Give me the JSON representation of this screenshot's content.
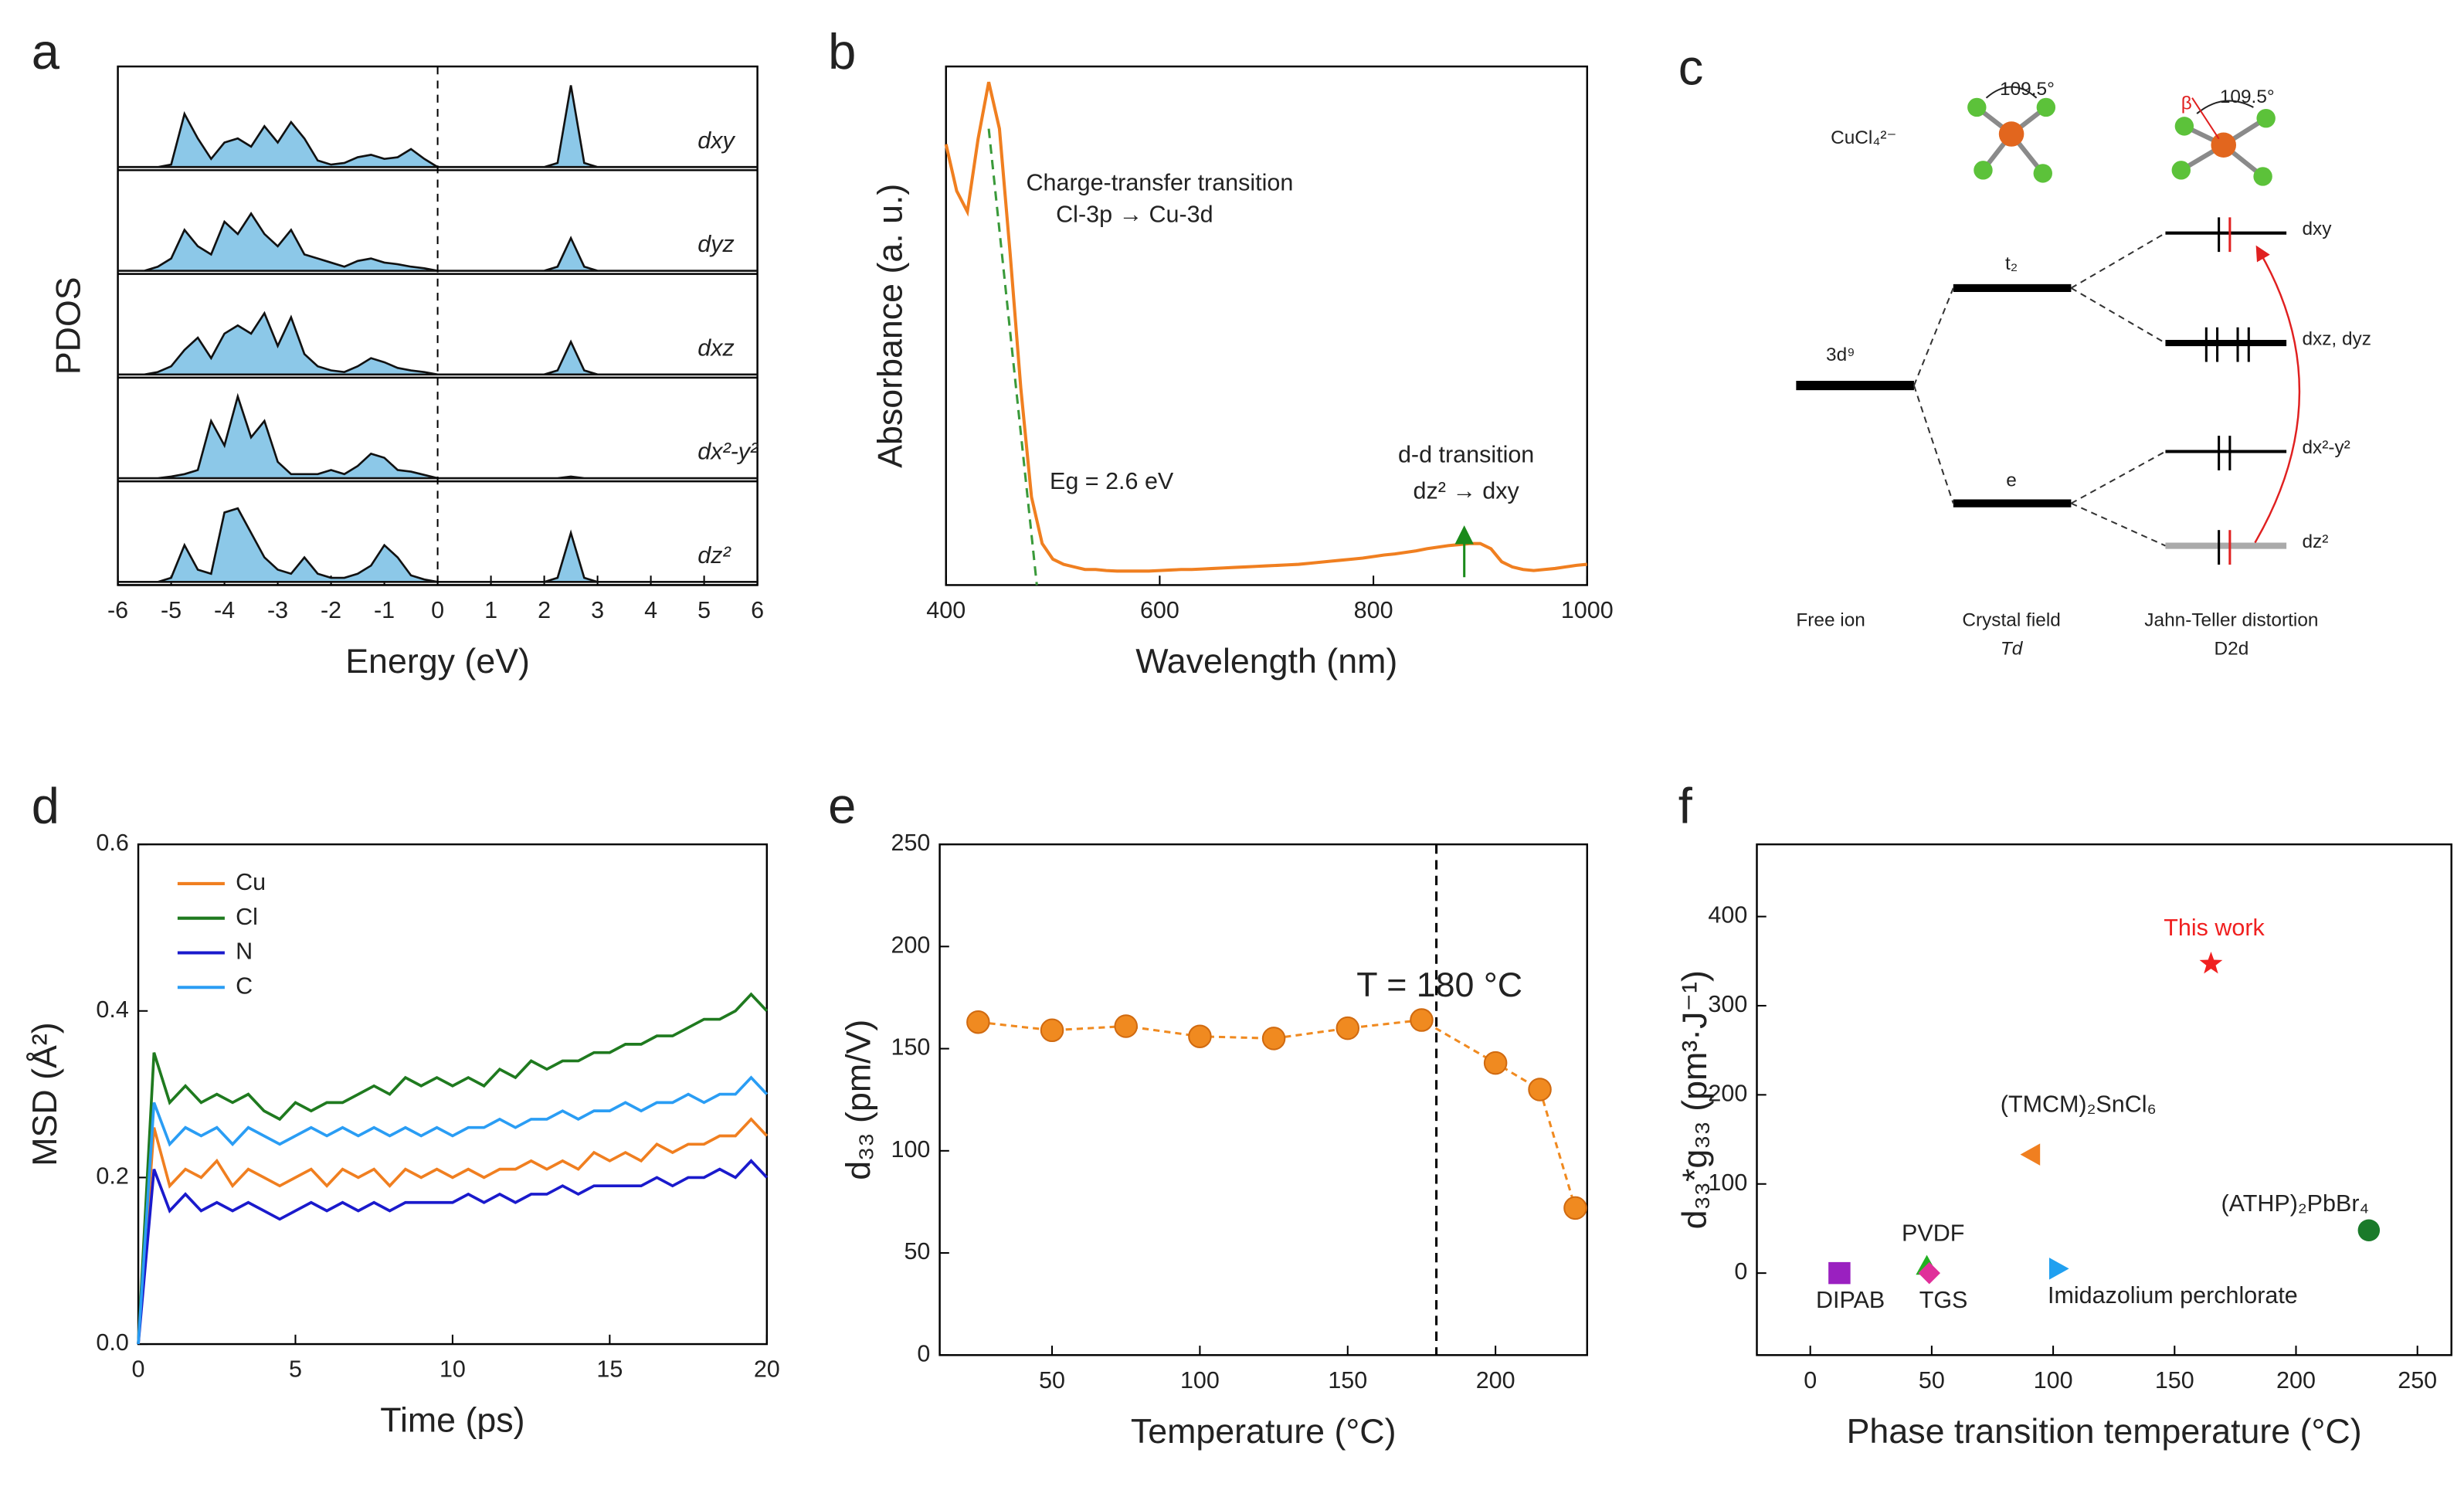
{
  "chart_data": [
    {
      "type": "area",
      "panel": "a",
      "xlabel": "Energy (eV)",
      "ylabel": "PDOS",
      "xlim": [
        -6,
        6
      ],
      "xticks": [
        -6,
        -5,
        -4,
        -3,
        -2,
        -1,
        0,
        1,
        2,
        3,
        4,
        5,
        6
      ],
      "vline": 0,
      "color": "#8cc8e8",
      "x": [
        -6,
        -5.75,
        -5.5,
        -5.25,
        -5,
        -4.75,
        -4.5,
        -4.25,
        -4,
        -3.75,
        -3.5,
        -3.25,
        -3,
        -2.75,
        -2.5,
        -2.25,
        -2,
        -1.75,
        -1.5,
        -1.25,
        -1,
        -0.75,
        -0.5,
        -0.25,
        0,
        0.25,
        0.5,
        0.75,
        1,
        1.25,
        1.5,
        1.75,
        2,
        2.25,
        2.5,
        2.75,
        3,
        3.25,
        3.5,
        3.75,
        4,
        4.25,
        4.5,
        4.75,
        5,
        5.25,
        5.5,
        5.75,
        6
      ],
      "series": [
        {
          "name": "dxy",
          "values": [
            0,
            0,
            0,
            0,
            0.03,
            0.65,
            0.35,
            0.1,
            0.3,
            0.35,
            0.25,
            0.5,
            0.3,
            0.55,
            0.35,
            0.08,
            0.03,
            0.05,
            0.12,
            0.15,
            0.1,
            0.12,
            0.22,
            0.1,
            0,
            0,
            0,
            0,
            0,
            0,
            0,
            0,
            0,
            0.05,
            1.0,
            0.05,
            0,
            0,
            0,
            0,
            0,
            0,
            0,
            0,
            0,
            0,
            0,
            0,
            0
          ]
        },
        {
          "name": "dyz",
          "values": [
            0,
            0,
            0,
            0.05,
            0.15,
            0.5,
            0.3,
            0.2,
            0.6,
            0.45,
            0.7,
            0.45,
            0.3,
            0.5,
            0.2,
            0.15,
            0.1,
            0.05,
            0.12,
            0.15,
            0.1,
            0.08,
            0.05,
            0.03,
            0,
            0,
            0,
            0,
            0,
            0,
            0,
            0,
            0,
            0.05,
            0.4,
            0.05,
            0,
            0,
            0,
            0,
            0,
            0,
            0,
            0,
            0,
            0,
            0,
            0,
            0
          ]
        },
        {
          "name": "dxz",
          "values": [
            0,
            0,
            0,
            0.03,
            0.1,
            0.3,
            0.45,
            0.2,
            0.5,
            0.6,
            0.5,
            0.75,
            0.35,
            0.7,
            0.25,
            0.1,
            0.05,
            0.03,
            0.1,
            0.2,
            0.15,
            0.08,
            0.05,
            0.03,
            0,
            0,
            0,
            0,
            0,
            0,
            0,
            0,
            0,
            0.05,
            0.4,
            0.05,
            0,
            0,
            0,
            0,
            0,
            0,
            0,
            0,
            0,
            0,
            0,
            0,
            0
          ]
        },
        {
          "name": "dx²-y²",
          "values": [
            0,
            0,
            0,
            0,
            0.02,
            0.05,
            0.1,
            0.7,
            0.4,
            1.0,
            0.5,
            0.7,
            0.2,
            0.05,
            0.05,
            0.05,
            0.1,
            0.05,
            0.15,
            0.3,
            0.25,
            0.1,
            0.08,
            0.04,
            0,
            0,
            0,
            0,
            0,
            0,
            0,
            0,
            0,
            0,
            0.02,
            0,
            0,
            0,
            0,
            0,
            0,
            0,
            0,
            0,
            0,
            0,
            0,
            0,
            0
          ]
        },
        {
          "name": "dz²",
          "values": [
            0,
            0,
            0,
            0,
            0.05,
            0.45,
            0.15,
            0.1,
            0.85,
            0.9,
            0.6,
            0.3,
            0.15,
            0.1,
            0.3,
            0.1,
            0.05,
            0.05,
            0.1,
            0.2,
            0.45,
            0.3,
            0.08,
            0.03,
            0,
            0,
            0,
            0,
            0,
            0,
            0,
            0,
            0,
            0.05,
            0.6,
            0.05,
            0,
            0,
            0,
            0,
            0,
            0,
            0,
            0,
            0,
            0,
            0,
            0,
            0
          ]
        }
      ]
    },
    {
      "type": "line",
      "panel": "b",
      "xlabel": "Wavelength (nm)",
      "ylabel": "Absorbance (a. u.)",
      "xlim": [
        400,
        1000
      ],
      "xticks": [
        400,
        600,
        800,
        1000
      ],
      "ylim": [
        0,
        1
      ],
      "color": "#f07f20",
      "annotations": [
        "Charge-transfer transition",
        "Cl-3p → Cu-3d",
        "Eg = 2.6 eV",
        "d-d transition",
        "dz² → dxy"
      ],
      "tangent": {
        "x": [
          440,
          485
        ],
        "y": [
          0.88,
          0
        ],
        "color": "#3a9a3a"
      },
      "arrow_x": 885,
      "x": [
        400,
        410,
        420,
        430,
        440,
        450,
        460,
        470,
        480,
        490,
        500,
        510,
        520,
        530,
        540,
        550,
        560,
        570,
        580,
        590,
        600,
        610,
        620,
        630,
        640,
        650,
        660,
        670,
        680,
        690,
        700,
        710,
        720,
        730,
        740,
        750,
        760,
        770,
        780,
        790,
        800,
        810,
        820,
        830,
        840,
        850,
        860,
        870,
        880,
        890,
        900,
        910,
        920,
        930,
        940,
        950,
        960,
        970,
        980,
        990,
        1000
      ],
      "values": [
        0.85,
        0.76,
        0.72,
        0.86,
        0.97,
        0.88,
        0.64,
        0.38,
        0.17,
        0.08,
        0.05,
        0.04,
        0.035,
        0.03,
        0.03,
        0.028,
        0.027,
        0.027,
        0.027,
        0.027,
        0.028,
        0.029,
        0.03,
        0.03,
        0.031,
        0.032,
        0.033,
        0.034,
        0.035,
        0.036,
        0.037,
        0.038,
        0.039,
        0.04,
        0.042,
        0.044,
        0.046,
        0.048,
        0.05,
        0.052,
        0.055,
        0.058,
        0.06,
        0.063,
        0.066,
        0.07,
        0.073,
        0.076,
        0.078,
        0.08,
        0.08,
        0.07,
        0.045,
        0.035,
        0.03,
        0.028,
        0.03,
        0.032,
        0.035,
        0.038,
        0.04
      ]
    },
    {
      "type": "line",
      "panel": "d",
      "xlabel": "Time (ps)",
      "ylabel": "MSD (Å²)",
      "xlim": [
        0,
        20
      ],
      "xticks": [
        0,
        5,
        10,
        15,
        20
      ],
      "ylim": [
        0,
        0.6
      ],
      "yticks": [
        {
          "value": 0,
          "label": "0.0"
        },
        0.2,
        0.4,
        0.6
      ],
      "x": [
        0,
        0.5,
        1,
        1.5,
        2,
        2.5,
        3,
        3.5,
        4,
        4.5,
        5,
        5.5,
        6,
        6.5,
        7,
        7.5,
        8,
        8.5,
        9,
        9.5,
        10,
        10.5,
        11,
        11.5,
        12,
        12.5,
        13,
        13.5,
        14,
        14.5,
        15,
        15.5,
        16,
        16.5,
        17,
        17.5,
        18,
        18.5,
        19,
        19.5,
        20
      ],
      "series": [
        {
          "name": "Cu",
          "color": "#f07f20",
          "values": [
            0,
            0.26,
            0.19,
            0.21,
            0.2,
            0.22,
            0.19,
            0.21,
            0.2,
            0.19,
            0.2,
            0.21,
            0.19,
            0.21,
            0.2,
            0.21,
            0.19,
            0.21,
            0.2,
            0.21,
            0.2,
            0.21,
            0.2,
            0.21,
            0.21,
            0.22,
            0.21,
            0.22,
            0.21,
            0.23,
            0.22,
            0.23,
            0.22,
            0.24,
            0.23,
            0.24,
            0.24,
            0.25,
            0.25,
            0.27,
            0.25
          ]
        },
        {
          "name": "Cl",
          "color": "#1f7a1f",
          "values": [
            0,
            0.35,
            0.29,
            0.31,
            0.29,
            0.3,
            0.29,
            0.3,
            0.28,
            0.27,
            0.29,
            0.28,
            0.29,
            0.29,
            0.3,
            0.31,
            0.3,
            0.32,
            0.31,
            0.32,
            0.31,
            0.32,
            0.31,
            0.33,
            0.32,
            0.34,
            0.33,
            0.34,
            0.34,
            0.35,
            0.35,
            0.36,
            0.36,
            0.37,
            0.37,
            0.38,
            0.39,
            0.39,
            0.4,
            0.42,
            0.4
          ]
        },
        {
          "name": "N",
          "color": "#1a1acc",
          "values": [
            0,
            0.21,
            0.16,
            0.18,
            0.16,
            0.17,
            0.16,
            0.17,
            0.16,
            0.15,
            0.16,
            0.17,
            0.16,
            0.17,
            0.16,
            0.17,
            0.16,
            0.17,
            0.17,
            0.17,
            0.17,
            0.18,
            0.17,
            0.18,
            0.17,
            0.18,
            0.18,
            0.19,
            0.18,
            0.19,
            0.19,
            0.19,
            0.19,
            0.2,
            0.19,
            0.2,
            0.2,
            0.21,
            0.2,
            0.22,
            0.2
          ]
        },
        {
          "name": "C",
          "color": "#2a9df4",
          "values": [
            0,
            0.29,
            0.24,
            0.26,
            0.25,
            0.26,
            0.24,
            0.26,
            0.25,
            0.24,
            0.25,
            0.26,
            0.25,
            0.26,
            0.25,
            0.26,
            0.25,
            0.26,
            0.25,
            0.26,
            0.25,
            0.26,
            0.26,
            0.27,
            0.26,
            0.27,
            0.27,
            0.28,
            0.27,
            0.28,
            0.28,
            0.29,
            0.28,
            0.29,
            0.29,
            0.3,
            0.29,
            0.3,
            0.3,
            0.32,
            0.3
          ]
        }
      ]
    },
    {
      "type": "line-points",
      "panel": "e",
      "xlabel": "Temperature (°C)",
      "ylabel": "d₃₃ (pm/V)",
      "xlim": [
        12,
        231
      ],
      "xticks": [
        50,
        100,
        150,
        200
      ],
      "ylim": [
        0,
        250
      ],
      "yticks": [
        0,
        50,
        100,
        150,
        200,
        250
      ],
      "vline": 180,
      "annotation": "T = 180 °C",
      "color": "#f08a20",
      "x": [
        25,
        50,
        75,
        100,
        125,
        150,
        175,
        200,
        215,
        227
      ],
      "values": [
        163,
        159,
        161,
        156,
        155,
        160,
        164,
        143,
        130,
        72
      ]
    },
    {
      "type": "scatter",
      "panel": "f",
      "xlabel": "Phase transition temperature (°C)",
      "ylabel": "d₃₃*g₃₃ (pm³·J⁻¹)",
      "xlim": [
        -22,
        264
      ],
      "xticks": [
        0,
        50,
        100,
        150,
        200,
        250
      ],
      "ylim": [
        -92,
        481
      ],
      "yticks": [
        0,
        100,
        200,
        300,
        400
      ],
      "series": [
        {
          "name": "DIPAB",
          "color": "#9a20c0",
          "marker": "square",
          "x": [
            12
          ],
          "values": [
            0
          ]
        },
        {
          "name": "PVDF",
          "color": "#22b022",
          "marker": "triangle-up",
          "x": [
            48
          ],
          "values": [
            8
          ]
        },
        {
          "name": "TGS",
          "color": "#e0309a",
          "marker": "diamond",
          "x": [
            49
          ],
          "values": [
            0
          ]
        },
        {
          "name": "Imidazolium perchlorate",
          "color": "#20a0f0",
          "marker": "triangle-right",
          "x": [
            102
          ],
          "values": [
            5
          ]
        },
        {
          "name": "(TMCM)₂SnCl₆",
          "color": "#f07f20",
          "marker": "triangle-left",
          "x": [
            91
          ],
          "values": [
            133
          ]
        },
        {
          "name": "(ATHP)₂PbBr₄",
          "color": "#1a7a2a",
          "marker": "circle",
          "x": [
            230
          ],
          "values": [
            48
          ]
        },
        {
          "name": "This work",
          "color": "#f02020",
          "marker": "star",
          "x": [
            165
          ],
          "values": [
            347
          ]
        }
      ]
    }
  ],
  "diagram": {
    "panel": "c",
    "formula": "CuCl₄²⁻",
    "angle_left": "109.5°",
    "angle_right": "109.5°",
    "beta": "β",
    "free_ion_level": "3d⁹",
    "t2": "t₂",
    "e": "e",
    "levels": [
      "dxy",
      "dxz, dyz",
      "dx²-y²",
      "dz²"
    ],
    "captions": [
      "Free ion",
      "Crystal field",
      "Jahn-Teller distortion"
    ],
    "groups": [
      "Td",
      "D2d"
    ]
  }
}
